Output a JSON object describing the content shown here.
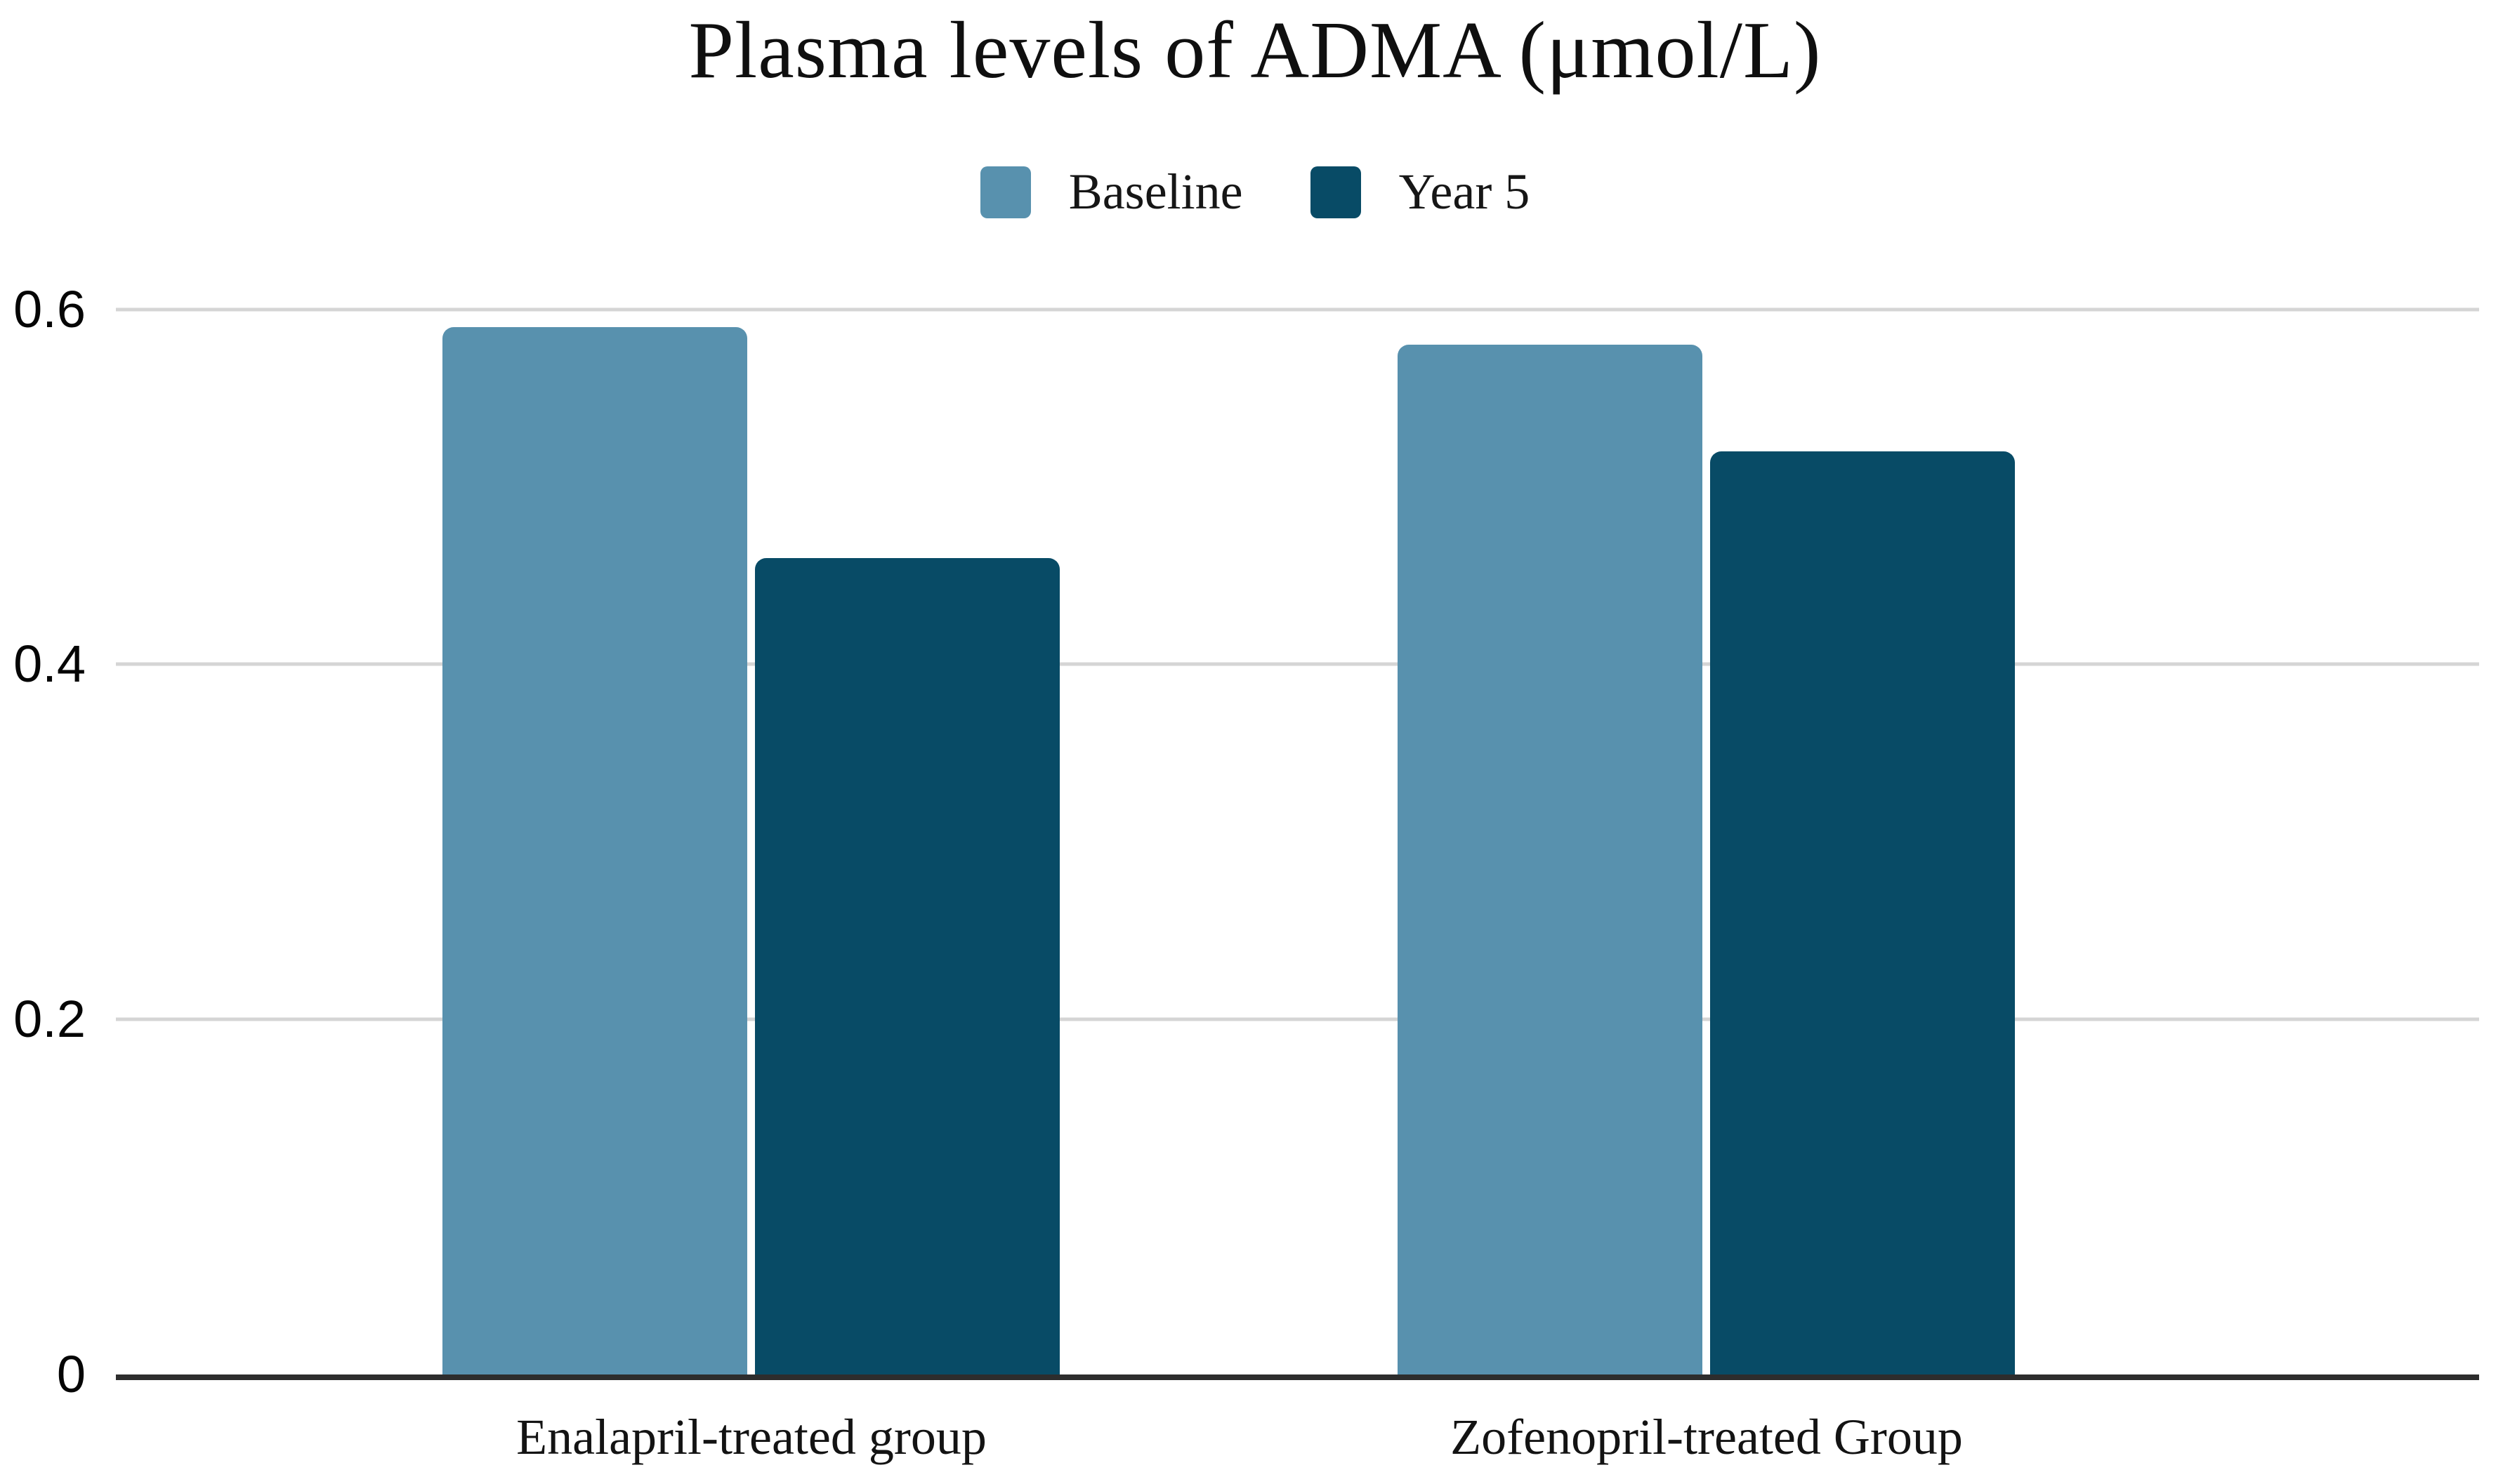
{
  "chart_data": {
    "type": "bar",
    "title": "Plasma levels of ADMA (μmol/L)",
    "categories": [
      "Enalapril-treated group",
      "Zofenopril-treated Group"
    ],
    "series": [
      {
        "name": "Baseline",
        "color": "#5891AE",
        "values": [
          0.59,
          0.58
        ]
      },
      {
        "name": "Year 5",
        "color": "#084B66",
        "values": [
          0.46,
          0.52
        ]
      }
    ],
    "xlabel": "",
    "ylabel": "",
    "ylim": [
      0,
      0.6
    ],
    "yticks": [
      0,
      0.2,
      0.4,
      0.6
    ],
    "grid": true,
    "legend_position": "top",
    "colors": {
      "gridline": "#d5d5d5",
      "axis": "#2d2d2d",
      "text": "#0f0f0f",
      "background": "#ffffff"
    }
  }
}
